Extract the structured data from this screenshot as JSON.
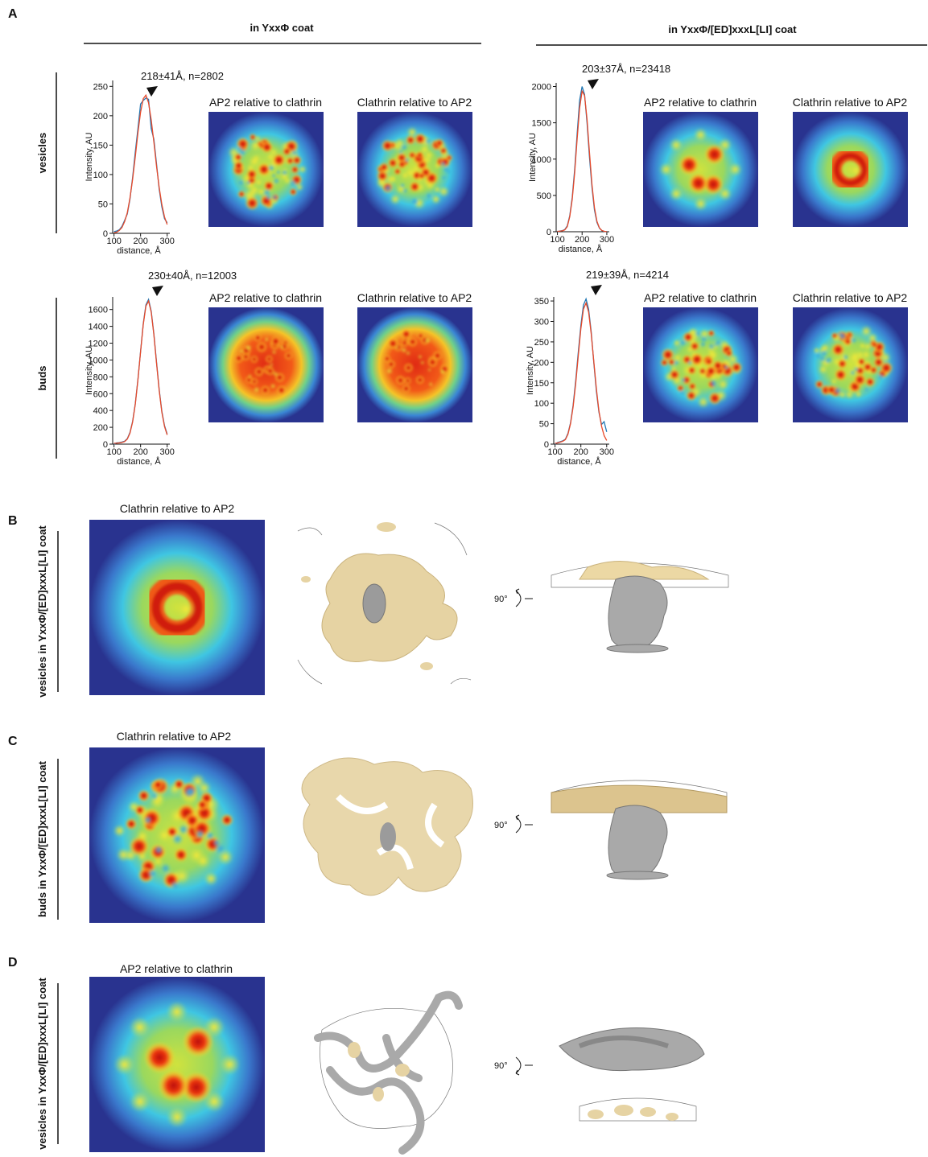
{
  "panel_labels": [
    "A",
    "B",
    "C",
    "D"
  ],
  "column_headers": [
    "in YxxΦ coat",
    "in YxxΦ/[ED]xxxL[LI] coat"
  ],
  "row_labels": [
    "vesicles",
    "buds"
  ],
  "map_titles": [
    "AP2 relative to clathrin",
    "Clathrin relative to AP2",
    "AP2 relative to clathrin",
    "Clathrin relative to AP2",
    "AP2 relative to clathrin",
    "Clathrin relative to AP2",
    "AP2 relative to clathrin",
    "Clathrin relative to AP2"
  ],
  "sections": [
    {
      "label": "vesicles in YxxΦ/[ED]xxxL[LI] coat",
      "map_title": "Clathrin relative to AP2",
      "rotation": "90°"
    },
    {
      "label": "buds in YxxΦ/[ED]xxxL[LI] coat",
      "map_title": "Clathrin relative to AP2",
      "rotation": "90°"
    },
    {
      "label": "vesicles in YxxΦ/[ED]xxxL[LI] coat",
      "map_title": "AP2 relative to clathrin",
      "rotation": "90°"
    }
  ],
  "chart_data": [
    {
      "type": "line",
      "annotation": "218±41Å, n=2802",
      "x_label": "distance, Å",
      "y_label": "Intensity, AU",
      "x": [
        100,
        110,
        120,
        130,
        140,
        150,
        160,
        170,
        180,
        190,
        200,
        210,
        220,
        230,
        240,
        250,
        260,
        270,
        280,
        290,
        300
      ],
      "series": [
        {
          "color": "#1f77b4",
          "values": [
            3,
            4,
            6,
            12,
            22,
            33,
            58,
            95,
            138,
            178,
            220,
            226,
            230,
            228,
            178,
            160,
            118,
            75,
            45,
            25,
            18
          ]
        },
        {
          "color": "#e8492a",
          "values": [
            1,
            2,
            5,
            10,
            20,
            35,
            60,
            92,
            130,
            171,
            206,
            229,
            235,
            222,
            193,
            155,
            114,
            78,
            49,
            28,
            15
          ]
        }
      ],
      "xlim": [
        95,
        310
      ],
      "xticks": [
        100,
        200,
        300
      ],
      "ylim": [
        0,
        260
      ],
      "yticks": [
        0,
        50,
        100,
        150,
        200,
        250
      ]
    },
    {
      "type": "line",
      "annotation": "230±40Å, n=12003",
      "x_label": "distance, Å",
      "y_label": "Intensity, AU",
      "x": [
        100,
        110,
        120,
        130,
        140,
        150,
        160,
        170,
        180,
        190,
        200,
        210,
        220,
        230,
        240,
        250,
        260,
        270,
        280,
        290,
        300
      ],
      "series": [
        {
          "color": "#1f77b4",
          "values": [
            0,
            15,
            18,
            25,
            35,
            65,
            138,
            270,
            480,
            770,
            1105,
            1430,
            1655,
            1720,
            1580,
            1310,
            975,
            650,
            390,
            220,
            120
          ]
        },
        {
          "color": "#e8492a",
          "values": [
            10,
            12,
            15,
            20,
            30,
            60,
            130,
            263,
            472,
            763,
            1098,
            1420,
            1640,
            1700,
            1569,
            1299,
            961,
            638,
            379,
            210,
            110
          ]
        }
      ],
      "xlim": [
        95,
        310
      ],
      "xticks": [
        100,
        200,
        300
      ],
      "ylim": [
        0,
        1750
      ],
      "yticks": [
        0,
        200,
        400,
        600,
        800,
        1000,
        1200,
        1400,
        1600
      ]
    },
    {
      "type": "line",
      "annotation": "203±37Å, n=23418",
      "x_label": "distance, Å",
      "y_label": "Intensity, AU",
      "x": [
        100,
        110,
        120,
        130,
        140,
        150,
        160,
        170,
        180,
        190,
        200,
        210,
        220,
        230,
        240,
        250,
        260,
        270,
        280,
        290,
        300
      ],
      "series": [
        {
          "color": "#1f77b4",
          "values": [
            0,
            10,
            15,
            30,
            80,
            220,
            470,
            860,
            1350,
            1810,
            2000,
            1890,
            1500,
            1020,
            610,
            300,
            130,
            50,
            15,
            5,
            2
          ]
        },
        {
          "color": "#e8492a",
          "values": [
            5,
            8,
            12,
            25,
            70,
            206,
            443,
            815,
            1279,
            1703,
            1936,
            1875,
            1548,
            1085,
            650,
            331,
            144,
            54,
            17,
            5,
            1
          ]
        }
      ],
      "xlim": [
        95,
        310
      ],
      "xticks": [
        100,
        200,
        300
      ],
      "ylim": [
        0,
        2050
      ],
      "yticks": [
        0,
        500,
        1000,
        1500,
        2000
      ]
    },
    {
      "type": "line",
      "annotation": "219±39Å, n=4214",
      "x_label": "distance, Å",
      "y_label": "Intensity, AU",
      "x": [
        100,
        110,
        120,
        130,
        140,
        150,
        160,
        170,
        180,
        190,
        200,
        210,
        220,
        230,
        240,
        250,
        260,
        270,
        280,
        290,
        300
      ],
      "series": [
        {
          "color": "#1f77b4",
          "values": [
            0,
            4,
            6,
            8,
            12,
            26,
            52,
            95,
            155,
            225,
            290,
            340,
            355,
            330,
            275,
            200,
            130,
            78,
            48,
            55,
            30
          ]
        },
        {
          "color": "#e8492a",
          "values": [
            2,
            3,
            5,
            7,
            11,
            24,
            50,
            91,
            148,
            216,
            282,
            330,
            345,
            323,
            270,
            203,
            136,
            81,
            44,
            21,
            9
          ]
        }
      ],
      "xlim": [
        95,
        310
      ],
      "xticks": [
        100,
        200,
        300
      ],
      "ylim": [
        0,
        360
      ],
      "yticks": [
        0,
        50,
        100,
        150,
        200,
        250,
        300,
        350
      ]
    }
  ]
}
